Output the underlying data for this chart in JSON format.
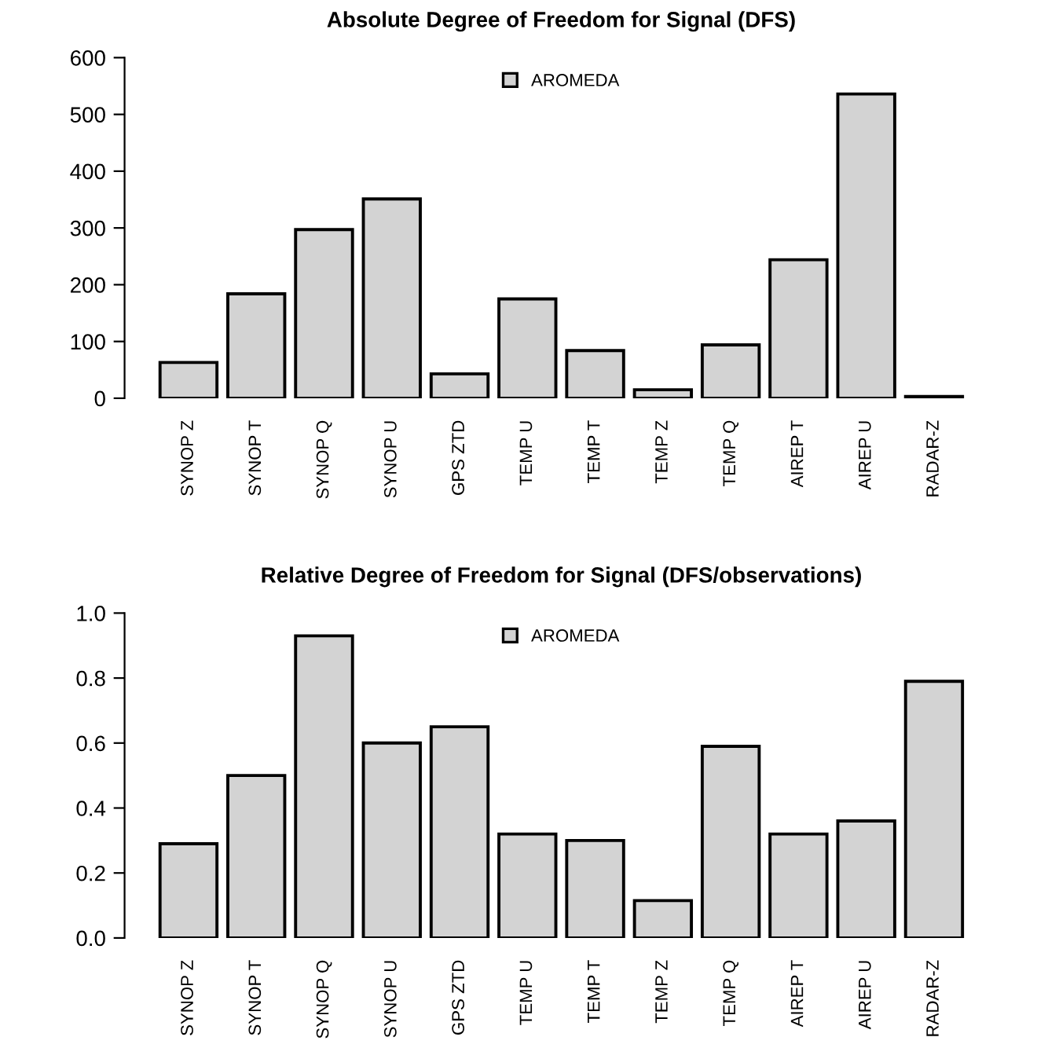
{
  "chart_data": [
    {
      "type": "bar",
      "title": "Absolute Degree of Freedom for Signal (DFS)",
      "categories": [
        "SYNOP Z",
        "SYNOP T",
        "SYNOP Q",
        "SYNOP U",
        "GPS ZTD",
        "TEMP U",
        "TEMP T",
        "TEMP Z",
        "TEMP Q",
        "AIREP T",
        "AIREP U",
        "RADAR-Z"
      ],
      "series": [
        {
          "name": "AROMEDA",
          "color": "#d3d3d3",
          "values": [
            63,
            184,
            297,
            351,
            43,
            175,
            84,
            15,
            94,
            244,
            536,
            3
          ]
        }
      ],
      "ylim": [
        0,
        600
      ],
      "yticks": [
        0,
        100,
        200,
        300,
        400,
        500,
        600
      ],
      "legend": "top",
      "grid": false
    },
    {
      "type": "bar",
      "title": "Relative Degree of Freedom for Signal (DFS/observations)",
      "categories": [
        "SYNOP Z",
        "SYNOP T",
        "SYNOP Q",
        "SYNOP U",
        "GPS ZTD",
        "TEMP U",
        "TEMP T",
        "TEMP Z",
        "TEMP Q",
        "AIREP T",
        "AIREP U",
        "RADAR-Z"
      ],
      "series": [
        {
          "name": "AROMEDA",
          "color": "#d3d3d3",
          "values": [
            0.29,
            0.5,
            0.93,
            0.6,
            0.65,
            0.32,
            0.3,
            0.115,
            0.59,
            0.32,
            0.36,
            0.79
          ]
        }
      ],
      "ylim": [
        0,
        1.0
      ],
      "yticks": [
        {
          "value": 0,
          "label": "0.0"
        },
        {
          "value": 0.2,
          "label": "0.2"
        },
        {
          "value": 0.4,
          "label": "0.4"
        },
        {
          "value": 0.6,
          "label": "0.6"
        },
        {
          "value": 0.8,
          "label": "0.8"
        },
        {
          "value": 1.0,
          "label": "1.0"
        }
      ],
      "legend": "top",
      "grid": false
    }
  ]
}
